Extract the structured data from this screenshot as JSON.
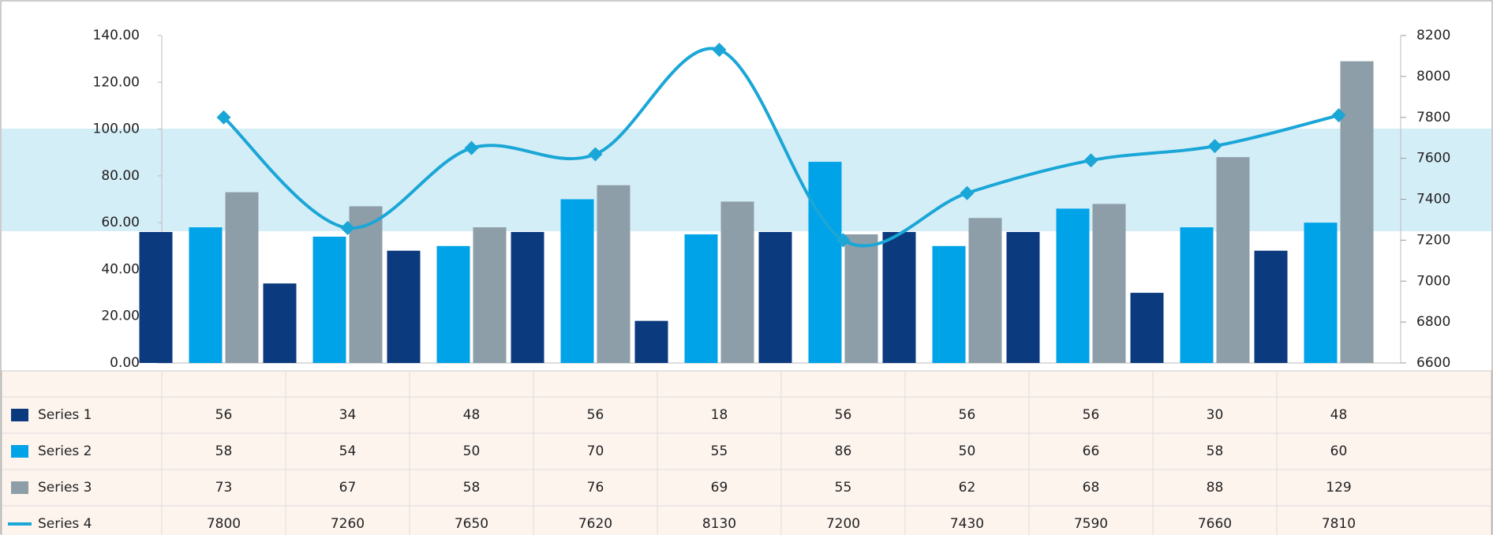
{
  "chart_data": {
    "type": "combo",
    "categories": [
      null,
      null,
      null,
      null,
      null,
      null,
      null,
      null,
      null,
      null
    ],
    "series": [
      {
        "name": "Series 1",
        "type": "bar",
        "color": "#0b3a7e",
        "values": [
          56,
          34,
          48,
          56,
          18,
          56,
          56,
          56,
          30,
          48
        ]
      },
      {
        "name": "Series 2",
        "type": "bar",
        "color": "#00a3e8",
        "values": [
          58,
          54,
          50,
          70,
          55,
          86,
          50,
          66,
          58,
          60
        ]
      },
      {
        "name": "Series 3",
        "type": "bar",
        "color": "#8e9ea8",
        "values": [
          73,
          67,
          58,
          76,
          69,
          55,
          62,
          68,
          88,
          129
        ]
      },
      {
        "name": "Series 4",
        "type": "line",
        "axis": "y2",
        "color": "#1aa6d6",
        "values": [
          7800,
          7260,
          7650,
          7620,
          8130,
          7200,
          7430,
          7590,
          7660,
          7810
        ]
      }
    ],
    "ylim": [
      0,
      140
    ],
    "yticks": [
      {
        "value": 0,
        "label": "0.00"
      },
      {
        "value": 20,
        "label": "20.00"
      },
      {
        "value": 40,
        "label": "40.00"
      },
      {
        "value": 60,
        "label": "60.00"
      },
      {
        "value": 80,
        "label": "80.00"
      },
      {
        "value": 100,
        "label": "100.00"
      },
      {
        "value": 120,
        "label": "120.00"
      },
      {
        "value": 140,
        "label": "140.00"
      }
    ],
    "y2lim": [
      6600,
      8200
    ],
    "y2ticks": [
      6600,
      6800,
      7000,
      7200,
      7400,
      7600,
      7800,
      8000,
      8200
    ]
  }
}
